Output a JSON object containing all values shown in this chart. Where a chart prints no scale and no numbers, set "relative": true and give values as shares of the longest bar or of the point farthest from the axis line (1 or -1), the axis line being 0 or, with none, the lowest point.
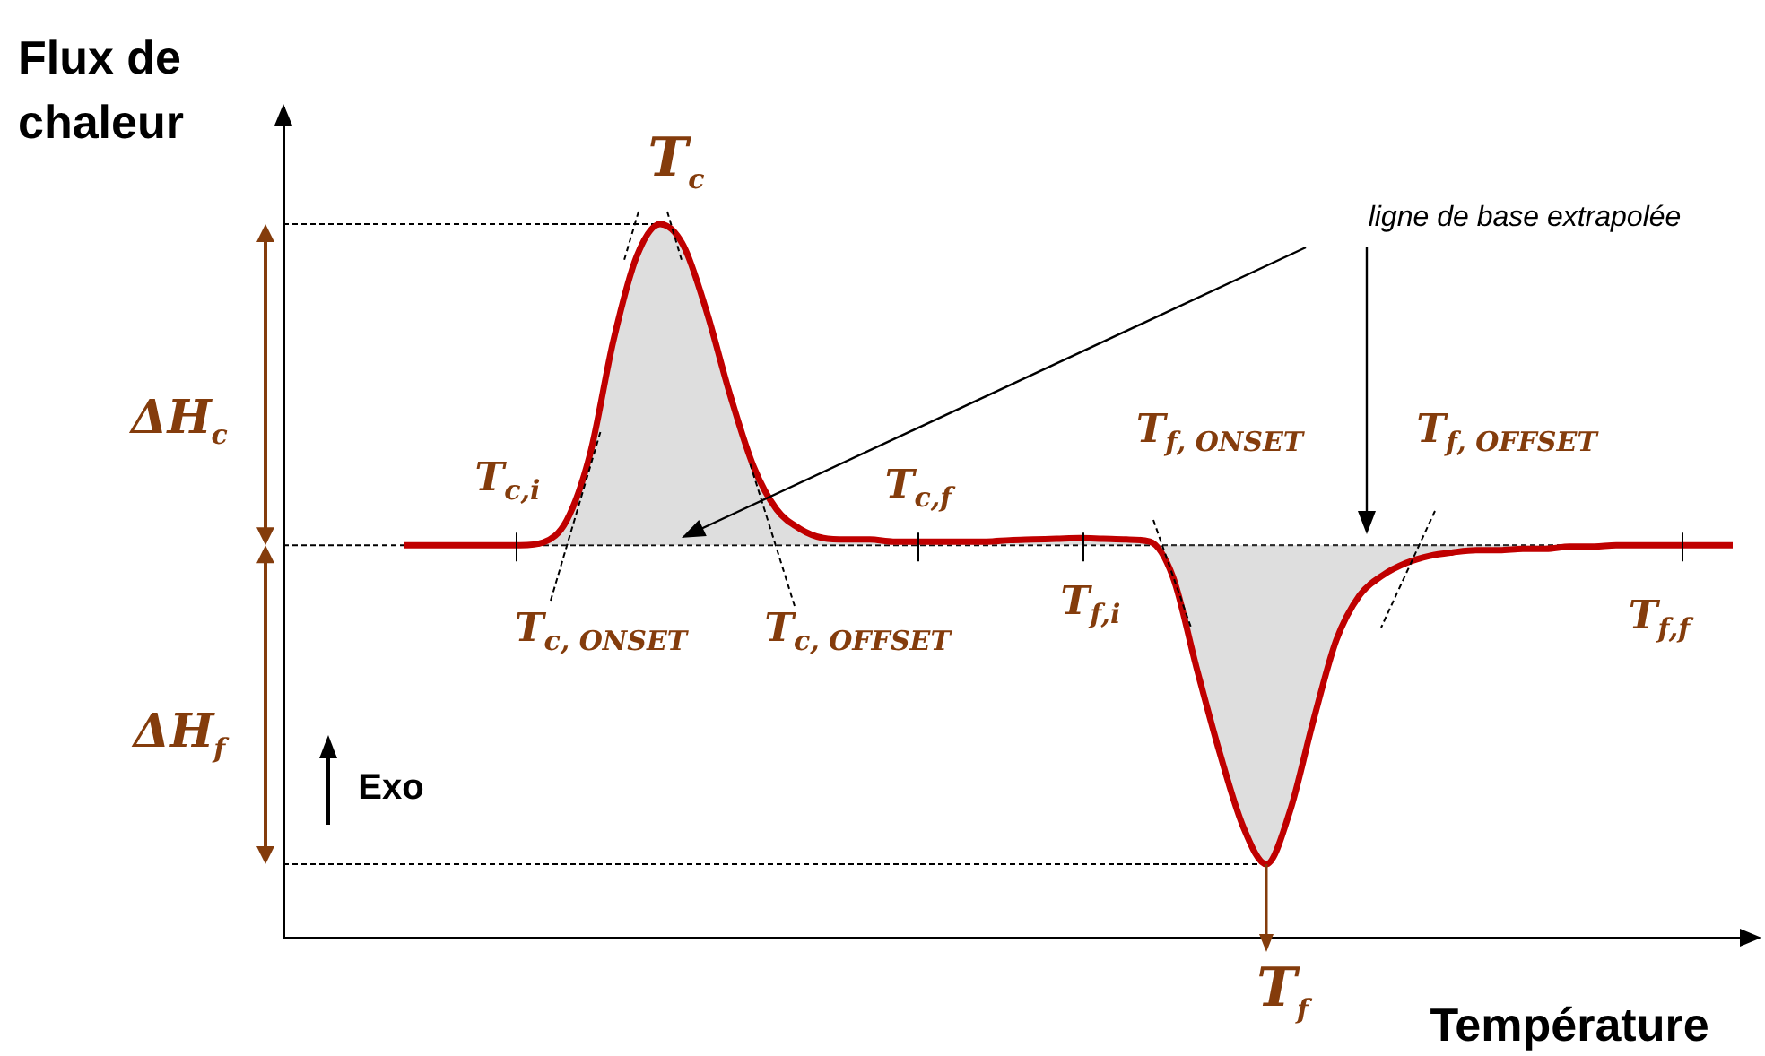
{
  "chart_data": {
    "type": "line",
    "relative": true,
    "color": "#c00000",
    "marker": "none",
    "tick_labels": false,
    "xlabel": "Température",
    "ref_lines": [
      {
        "axis": "y",
        "value": 0.55,
        "line_style": "dashed",
        "color": "#000000"
      },
      {
        "axis": "y",
        "value": 1.0,
        "line_style": "dashed",
        "color": "#000000"
      },
      {
        "axis": "y",
        "value": 0.103,
        "line_style": "dashed",
        "color": "#000000"
      }
    ],
    "ylabel": "Flux de chaleur",
    "categories": [
      null,
      null,
      null,
      null,
      null,
      null,
      null,
      null,
      null,
      null,
      null,
      null,
      null,
      null,
      null,
      null,
      null,
      null,
      null,
      null,
      null,
      null,
      null,
      null,
      null,
      null,
      null,
      null,
      null,
      null,
      null,
      null,
      null,
      null,
      null,
      null,
      null,
      null,
      null,
      null,
      null,
      null,
      null,
      null,
      null,
      null,
      null,
      null,
      null,
      null,
      null,
      null,
      null,
      null,
      null,
      null,
      null,
      null
    ],
    "values": [
      0.55,
      0.55,
      0.55,
      0.55,
      0.55,
      0.55,
      0.554,
      0.585,
      0.678,
      0.837,
      0.955,
      1.0,
      0.97,
      0.877,
      0.761,
      0.661,
      0.6,
      0.573,
      0.56,
      0.558,
      0.558,
      0.555,
      0.555,
      0.555,
      0.555,
      0.555,
      0.557,
      0.558,
      0.559,
      0.56,
      0.559,
      0.558,
      0.555,
      0.505,
      0.379,
      0.259,
      0.156,
      0.103,
      0.176,
      0.302,
      0.417,
      0.48,
      0.508,
      0.525,
      0.535,
      0.54,
      0.543,
      0.543,
      0.545,
      0.545,
      0.548,
      0.548,
      0.55,
      0.55,
      0.55,
      0.55,
      0.55,
      0.55
    ],
    "annotations": [
      "T$_{c}$",
      "ΔH$_{c}$",
      "ΔH$_{f}$",
      "T$_{c,i}$",
      "T$_{c, ONSET}$",
      "T$_{c, OFFSET}$",
      "T$_{c,f}$",
      "T$_{f,i}$",
      "T$_{f, ONSET}$",
      "T$_{f, OFFSET}$",
      "T$_{f,f}$",
      "T$_{f}$",
      "ligne de base extrapolée",
      "Exo"
    ]
  }
}
